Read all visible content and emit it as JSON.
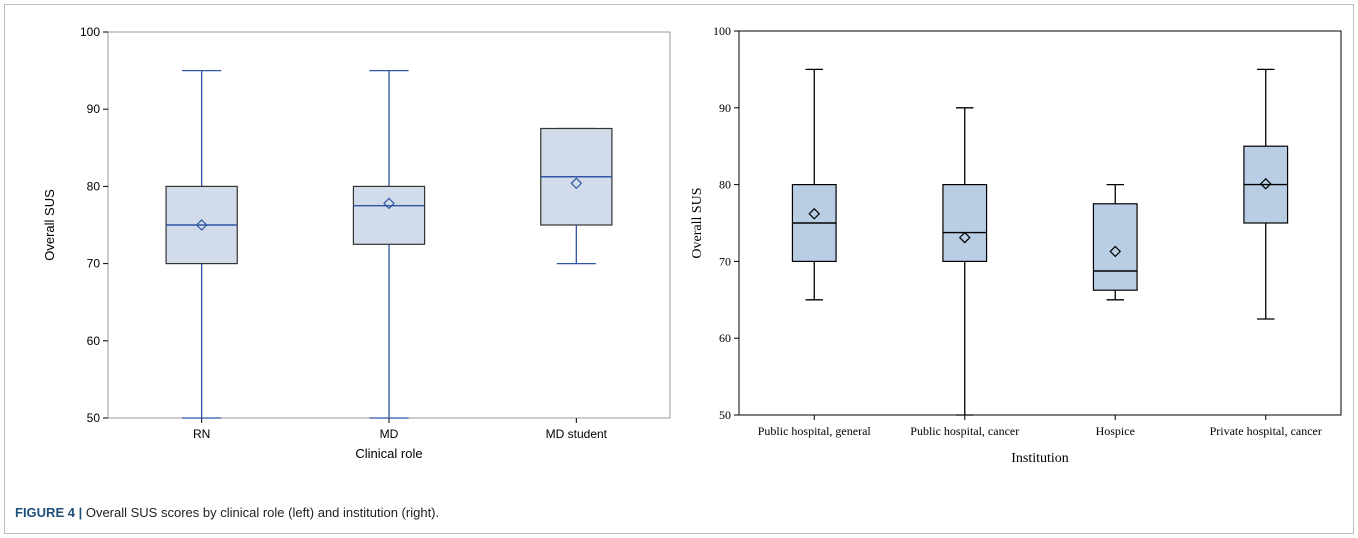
{
  "caption": {
    "label": "FIGURE 4 |",
    "text": "Overall SUS scores by clinical role (left) and institution (right)."
  },
  "chart_data": [
    {
      "type": "box",
      "title": "",
      "xlabel": "Clinical role",
      "ylabel": "Overall SUS",
      "ylim": [
        50,
        100
      ],
      "yticks": [
        50,
        60,
        70,
        80,
        90,
        100
      ],
      "grid": false,
      "colors": {
        "box_fill": "#d2dbe9",
        "box_stroke": "#2f55a4",
        "frame": "#9a9a9a"
      },
      "categories": [
        "RN",
        "MD",
        "MD student"
      ],
      "series": [
        {
          "min": 50,
          "q1": 70,
          "median": 75,
          "q3": 80,
          "max": 95,
          "mean": 75
        },
        {
          "min": 50,
          "q1": 72.5,
          "median": 77.5,
          "q3": 80,
          "max": 95,
          "mean": 77.8
        },
        {
          "min": 70,
          "q1": 75,
          "median": 81.25,
          "q3": 87.5,
          "max": 87.5,
          "mean": 80.4
        }
      ]
    },
    {
      "type": "box",
      "title": "",
      "xlabel": "Institution",
      "ylabel": "Overall SUS",
      "ylim": [
        50,
        100
      ],
      "yticks": [
        50,
        60,
        70,
        80,
        90,
        100
      ],
      "grid": false,
      "colors": {
        "box_fill": "#b9cee5",
        "box_stroke": "#000000",
        "frame": "#000000"
      },
      "categories": [
        "Public hospital, general",
        "Public hospital, cancer",
        "Hospice",
        "Private hospital, cancer"
      ],
      "series": [
        {
          "min": 65,
          "q1": 70,
          "median": 75,
          "q3": 80,
          "max": 95,
          "mean": 76.2
        },
        {
          "min": 50,
          "q1": 70,
          "median": 73.75,
          "q3": 80,
          "max": 90,
          "mean": 73.1
        },
        {
          "min": 65,
          "q1": 66.25,
          "median": 68.75,
          "q3": 77.5,
          "max": 80,
          "mean": 71.3
        },
        {
          "min": 62.5,
          "q1": 75,
          "median": 80,
          "q3": 85,
          "max": 95,
          "mean": 80.1
        }
      ]
    }
  ]
}
